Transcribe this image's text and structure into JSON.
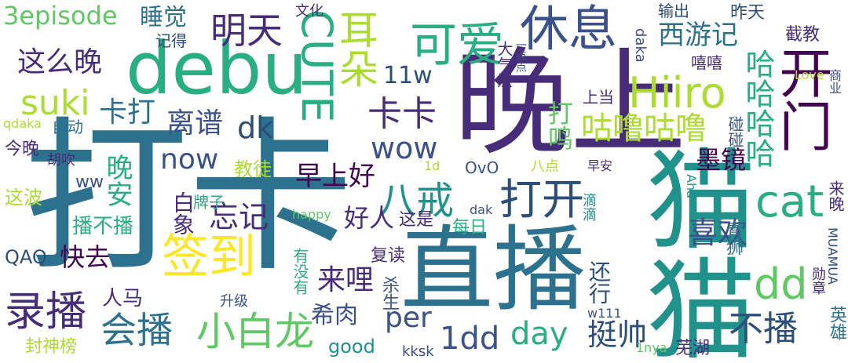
{
  "colors": {
    "dark_purple": "#440154",
    "purple": "#472c7a",
    "indigo": "#3b518b",
    "blue": "#2c728e",
    "teal": "#21918c",
    "green_teal": "#28ae80",
    "green": "#5ec962",
    "lime": "#addc30",
    "yellow": "#fde725",
    "slate": "#2c4f7a"
  },
  "words": {
    "daka_big": "打卡",
    "wanshang": "晚上",
    "maomao": "猫猫",
    "zhibo": "直播",
    "debu": "debu",
    "kaimen": "开门",
    "xiuxi": "休息",
    "keai": "可爱",
    "erduo": "耳朵",
    "cute": "CUTE",
    "hiiro": "Hiiro",
    "suki": "suki",
    "mingtian": "明天",
    "qiandao": "签到",
    "luboo": "录播",
    "huibo": "会播",
    "xiaobailong": "小白龙",
    "kaka": "卡卡",
    "dakai": "打开",
    "bajie": "八戒",
    "cat": "cat",
    "dd": "dd",
    "bubo": "不播",
    "gulugulu": "咕噜咕噜",
    "hahaha": "哈哈哈哈",
    "daming": "打鸣",
    "xiyouji": "西游记",
    "wow": "wow",
    "dk": "dk",
    "lipu": "离谱",
    "kada": "卡打",
    "zhemewan": "这么晚",
    "ep3": "3episode",
    "shuijiao": "睡觉",
    "now": "now",
    "zaoshanghao": "早上好",
    "wangji": "忘记",
    "haoren": "好人",
    "laili": "来哩",
    "xirou": "希肉",
    "per": "per",
    "day": "day",
    "ting_shuai": "挺帅",
    "dd1": "1dd",
    "xihuan": "喜欢",
    "mojing": "墨镜",
    "kuaiqu": "快去",
    "wanan": "晚安",
    "baixiang": "白象",
    "jiaotu": "教徒",
    "paizi": "牌子",
    "bobubo": "播不播",
    "zhebo": "这波",
    "jinwan": "今晚",
    "zidong": "自动",
    "qdaka": "qdaka",
    "QAQ": "QAQ",
    "ww": "ww",
    "renma": "人马",
    "fengshenbang": "封神榜",
    "shengji": "升级",
    "youmeiyou": "有没有",
    "shasheng": "杀生",
    "good": "good",
    "kksk": "kksk",
    "fudu": "复读",
    "zheshi": "这是",
    "meiri": "每日",
    "haixing": "还行",
    "w11": "11w",
    "shangdang": "上当",
    "huchui": "胡吹",
    "jide": "记得",
    "wenhua": "文化",
    "daqiceng": "大气层",
    "yidiandian": "一点点",
    "daka_small": "daka",
    "shuchu": "输出",
    "zuotian": "昨天",
    "jiejiao": "截教",
    "love": "Love",
    "xixi": "嘻嘻",
    "shangye": "商业",
    "pengpeng": "碰碰",
    "zaoan": "早安",
    "badian": "八点",
    "ovo": "OvO",
    "d1": "1d",
    "happy": "happy",
    "dak": "dak",
    "didi": "滴滴",
    "aha": "Aha",
    "laiwan": "来晚",
    "muamua": "MUAMUA",
    "qingshi": "青狮",
    "xunzhang": "勋章",
    "yingxiong": "英雄",
    "wuhu": "芜湖",
    "nya1": "1nya",
    "w111": "w111"
  }
}
